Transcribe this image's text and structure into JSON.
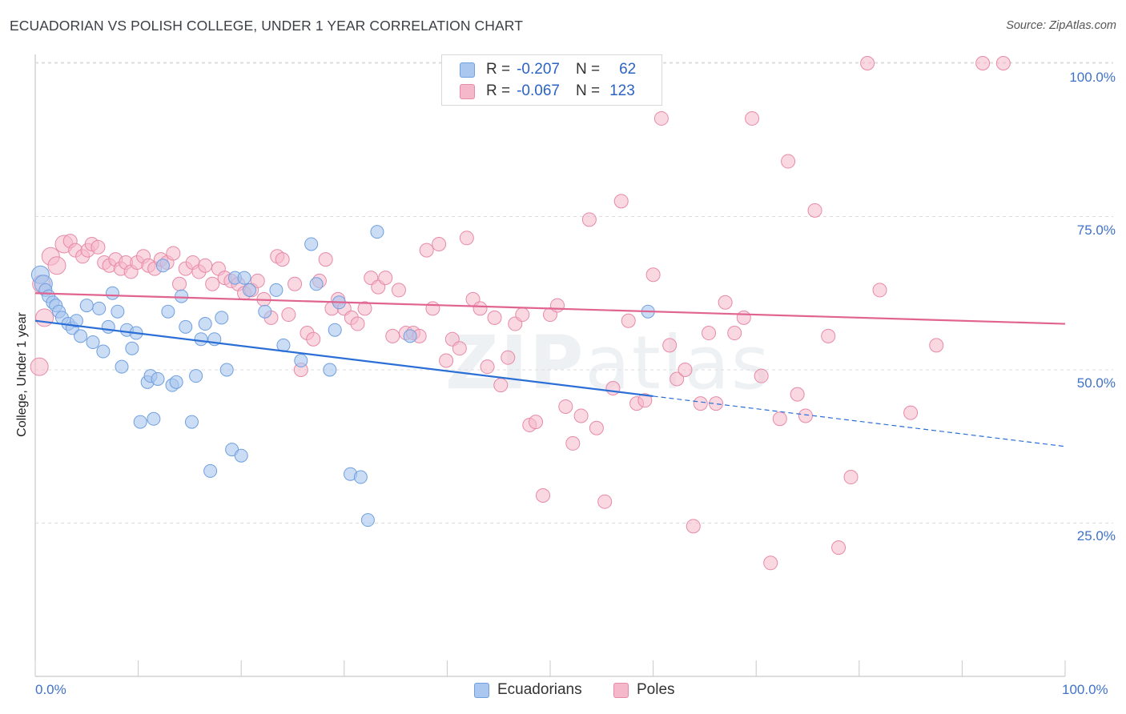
{
  "title": "ECUADORIAN VS POLISH COLLEGE, UNDER 1 YEAR CORRELATION CHART",
  "source": "Source: ZipAtlas.com",
  "watermark": {
    "bold": "ZIP",
    "light": "atlas"
  },
  "legend_top": [
    {
      "series": "Ecuadorians",
      "r_label": "R =",
      "r_value": "-0.207",
      "n_label": "N =",
      "n_value": "62"
    },
    {
      "series": "Poles",
      "r_label": "R =",
      "r_value": "-0.067",
      "n_label": "N =",
      "n_value": "123"
    }
  ],
  "legend_bottom": [
    "Ecuadorians",
    "Poles"
  ],
  "colors": {
    "ecuadorian_fill": "#a9c7ef",
    "ecuadorian_stroke": "#6f9fdf",
    "ecuadorian_line": "#2b6fd6",
    "poles_fill": "#f5b8cb",
    "poles_stroke": "#e78aa8",
    "poles_line": "#e0648f",
    "tick_label": "#3f72c8",
    "grid": "#dddddd"
  },
  "chart_data": {
    "type": "scatter",
    "title": "ECUADORIAN VS POLISH COLLEGE, UNDER 1 YEAR CORRELATION CHART",
    "xlabel": "",
    "ylabel": "College, Under 1 year",
    "xlim": [
      0,
      100
    ],
    "ylim": [
      0,
      103
    ],
    "x_tick_labels": [
      "0.0%",
      "100.0%"
    ],
    "y_ticks": [
      25,
      50,
      75,
      100
    ],
    "y_tick_labels": [
      "25.0%",
      "50.0%",
      "75.0%",
      "100.0%"
    ],
    "grid": "horizontal dashed",
    "series": [
      {
        "name": "Ecuadorians",
        "r": -0.207,
        "n": 62,
        "trend": {
          "x0": 0,
          "y0": 58.0,
          "x1": 60,
          "y1": 45.7,
          "dashed_to_x": 100,
          "dashed_to_y": 37.5
        },
        "points": [
          [
            0.5,
            65.5
          ],
          [
            0.8,
            64.0
          ],
          [
            1.0,
            63.0
          ],
          [
            1.3,
            62.0
          ],
          [
            1.7,
            61.0
          ],
          [
            2.0,
            60.5
          ],
          [
            2.3,
            59.5
          ],
          [
            2.6,
            58.5
          ],
          [
            3.2,
            57.5
          ],
          [
            3.6,
            56.8
          ],
          [
            4.0,
            58.0
          ],
          [
            4.4,
            55.5
          ],
          [
            5.0,
            60.5
          ],
          [
            5.6,
            54.5
          ],
          [
            6.2,
            60.0
          ],
          [
            6.6,
            53.0
          ],
          [
            7.1,
            57.0
          ],
          [
            7.5,
            62.5
          ],
          [
            8.0,
            59.5
          ],
          [
            8.4,
            50.5
          ],
          [
            8.9,
            56.5
          ],
          [
            9.4,
            53.5
          ],
          [
            9.8,
            56.0
          ],
          [
            10.2,
            41.5
          ],
          [
            10.9,
            48.0
          ],
          [
            11.2,
            49.0
          ],
          [
            11.5,
            42.0
          ],
          [
            11.9,
            48.5
          ],
          [
            12.4,
            67.0
          ],
          [
            12.9,
            59.5
          ],
          [
            13.3,
            47.5
          ],
          [
            13.7,
            48.0
          ],
          [
            14.2,
            62.0
          ],
          [
            14.6,
            57.0
          ],
          [
            15.2,
            41.5
          ],
          [
            15.6,
            49.0
          ],
          [
            16.1,
            55.0
          ],
          [
            16.5,
            57.5
          ],
          [
            17.0,
            33.5
          ],
          [
            17.4,
            55.0
          ],
          [
            18.1,
            58.5
          ],
          [
            18.6,
            50.0
          ],
          [
            19.1,
            37.0
          ],
          [
            19.4,
            65.0
          ],
          [
            20.0,
            36.0
          ],
          [
            20.3,
            65.0
          ],
          [
            20.8,
            63.0
          ],
          [
            22.3,
            59.5
          ],
          [
            23.4,
            63.0
          ],
          [
            24.1,
            54.0
          ],
          [
            25.8,
            51.5
          ],
          [
            26.8,
            70.5
          ],
          [
            27.3,
            64.0
          ],
          [
            28.6,
            50.0
          ],
          [
            29.1,
            56.5
          ],
          [
            29.5,
            61.0
          ],
          [
            30.6,
            33.0
          ],
          [
            31.6,
            32.5
          ],
          [
            32.3,
            25.5
          ],
          [
            33.2,
            72.5
          ],
          [
            36.4,
            55.5
          ],
          [
            59.5,
            59.5
          ]
        ]
      },
      {
        "name": "Poles",
        "r": -0.067,
        "n": 123,
        "trend": {
          "x0": 0,
          "y0": 62.5,
          "x1": 100,
          "y1": 57.5
        },
        "points": [
          [
            0.4,
            50.5
          ],
          [
            0.6,
            64.0
          ],
          [
            0.9,
            58.5
          ],
          [
            1.5,
            68.5
          ],
          [
            2.1,
            67.0
          ],
          [
            2.8,
            70.5
          ],
          [
            3.4,
            71.0
          ],
          [
            3.9,
            69.5
          ],
          [
            4.6,
            68.5
          ],
          [
            5.1,
            69.5
          ],
          [
            5.5,
            70.5
          ],
          [
            6.1,
            70.0
          ],
          [
            6.7,
            67.5
          ],
          [
            7.2,
            67.0
          ],
          [
            7.8,
            68.0
          ],
          [
            8.3,
            66.5
          ],
          [
            8.8,
            67.5
          ],
          [
            9.3,
            66.0
          ],
          [
            9.9,
            67.5
          ],
          [
            10.5,
            68.5
          ],
          [
            11.0,
            67.0
          ],
          [
            11.6,
            66.5
          ],
          [
            12.2,
            68.0
          ],
          [
            12.8,
            67.5
          ],
          [
            13.4,
            69.0
          ],
          [
            14.0,
            64.0
          ],
          [
            14.6,
            66.5
          ],
          [
            15.3,
            67.5
          ],
          [
            15.9,
            66.0
          ],
          [
            16.5,
            67.0
          ],
          [
            17.2,
            64.0
          ],
          [
            17.8,
            66.5
          ],
          [
            18.4,
            65.0
          ],
          [
            19.0,
            64.5
          ],
          [
            19.7,
            64.0
          ],
          [
            20.3,
            62.5
          ],
          [
            21.0,
            63.0
          ],
          [
            21.6,
            64.5
          ],
          [
            22.2,
            61.5
          ],
          [
            22.9,
            58.5
          ],
          [
            23.5,
            68.5
          ],
          [
            24.0,
            68.0
          ],
          [
            24.6,
            59.0
          ],
          [
            25.2,
            64.0
          ],
          [
            25.8,
            50.0
          ],
          [
            26.4,
            56.0
          ],
          [
            27.0,
            55.0
          ],
          [
            27.6,
            64.5
          ],
          [
            28.2,
            68.0
          ],
          [
            28.8,
            60.0
          ],
          [
            29.4,
            61.5
          ],
          [
            30.0,
            60.0
          ],
          [
            30.7,
            58.5
          ],
          [
            31.3,
            57.5
          ],
          [
            32.0,
            60.0
          ],
          [
            32.6,
            65.0
          ],
          [
            33.3,
            63.5
          ],
          [
            34.0,
            65.0
          ],
          [
            34.7,
            55.5
          ],
          [
            35.3,
            63.0
          ],
          [
            36.0,
            56.0
          ],
          [
            36.7,
            56.0
          ],
          [
            37.3,
            55.5
          ],
          [
            38.0,
            69.5
          ],
          [
            38.6,
            60.0
          ],
          [
            39.2,
            70.5
          ],
          [
            39.9,
            51.5
          ],
          [
            40.5,
            55.0
          ],
          [
            41.2,
            53.5
          ],
          [
            41.9,
            71.5
          ],
          [
            42.5,
            61.5
          ],
          [
            43.2,
            60.0
          ],
          [
            43.9,
            50.5
          ],
          [
            44.6,
            58.5
          ],
          [
            45.2,
            47.5
          ],
          [
            45.9,
            52.0
          ],
          [
            46.6,
            57.5
          ],
          [
            47.3,
            59.0
          ],
          [
            48.0,
            41.0
          ],
          [
            48.6,
            41.5
          ],
          [
            49.3,
            29.5
          ],
          [
            50.0,
            59.0
          ],
          [
            50.7,
            60.5
          ],
          [
            51.5,
            44.0
          ],
          [
            52.2,
            38.0
          ],
          [
            53.0,
            42.5
          ],
          [
            53.8,
            74.5
          ],
          [
            54.5,
            40.5
          ],
          [
            55.3,
            28.5
          ],
          [
            56.1,
            47.0
          ],
          [
            56.9,
            77.5
          ],
          [
            57.6,
            58.0
          ],
          [
            58.4,
            44.5
          ],
          [
            59.2,
            45.0
          ],
          [
            60.0,
            65.5
          ],
          [
            60.8,
            91.0
          ],
          [
            61.6,
            54.0
          ],
          [
            62.3,
            48.5
          ],
          [
            63.1,
            50.0
          ],
          [
            63.9,
            24.5
          ],
          [
            64.6,
            44.5
          ],
          [
            65.4,
            56.0
          ],
          [
            66.1,
            44.5
          ],
          [
            67.0,
            61.0
          ],
          [
            67.9,
            56.0
          ],
          [
            68.8,
            58.5
          ],
          [
            69.6,
            91.0
          ],
          [
            70.5,
            49.0
          ],
          [
            71.4,
            18.5
          ],
          [
            72.3,
            42.0
          ],
          [
            73.1,
            84.0
          ],
          [
            74.0,
            46.0
          ],
          [
            74.8,
            42.5
          ],
          [
            75.7,
            76.0
          ],
          [
            77.0,
            55.5
          ],
          [
            78.0,
            21.0
          ],
          [
            79.2,
            32.5
          ],
          [
            80.8,
            100.0
          ],
          [
            82.0,
            63.0
          ],
          [
            85.0,
            43.0
          ],
          [
            87.5,
            54.0
          ],
          [
            92.0,
            100.0
          ],
          [
            94.0,
            100.0
          ]
        ]
      }
    ]
  }
}
